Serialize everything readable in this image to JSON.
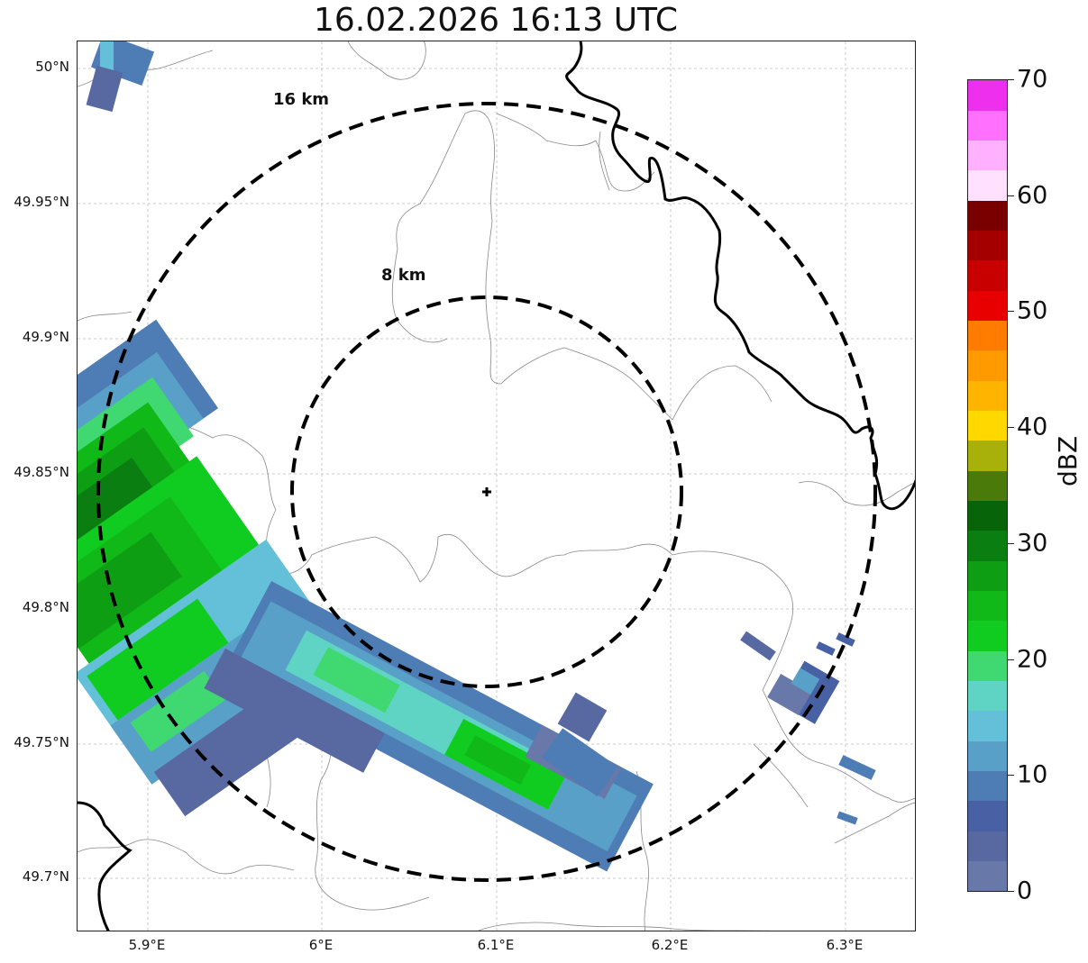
{
  "title": "16.02.2026 16:13 UTC",
  "axes": {
    "lat_labels": [
      "50°N",
      "49.95°N",
      "49.9°N",
      "49.85°N",
      "49.8°N",
      "49.75°N",
      "49.7°N"
    ],
    "lon_labels": [
      "5.9°E",
      "6°E",
      "6.1°E",
      "6.2°E",
      "6.3°E"
    ]
  },
  "range_rings": {
    "inner_label": "8 km",
    "outer_label": "16 km"
  },
  "colorbar": {
    "label": "dBZ",
    "ticks": [
      "0",
      "10",
      "20",
      "30",
      "40",
      "50",
      "60",
      "70"
    ],
    "colors": [
      "#6878a8",
      "#5868a0",
      "#4860a4",
      "#4e7cb4",
      "#58a0c8",
      "#64c0d8",
      "#60d4c4",
      "#40d870",
      "#10cc20",
      "#10b818",
      "#0e9e14",
      "#0a7e10",
      "#086408",
      "#4a7a0a",
      "#a8b00a",
      "#ffd800",
      "#ffb400",
      "#ff9a00",
      "#ff7c00",
      "#e80000",
      "#c80000",
      "#a40000",
      "#7a0000",
      "#ffe0ff",
      "#ffb0ff",
      "#ff70ff",
      "#ee30ee"
    ]
  },
  "radar_site": {
    "symbol": "+"
  }
}
